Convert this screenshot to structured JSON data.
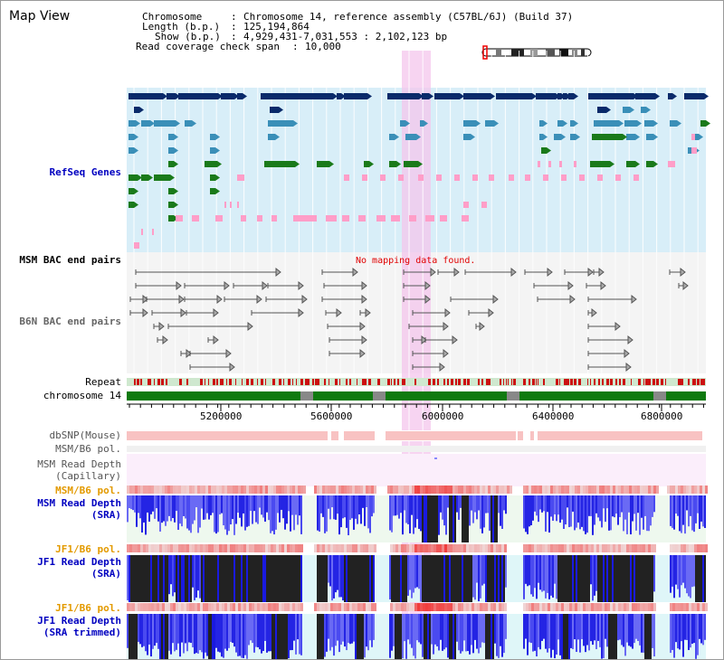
{
  "app_title": "Map View",
  "header": {
    "chromosome_key": "Chromosome",
    "chromosome_val": "Chromosome 14, reference assembly (C57BL/6J) (Build 37)",
    "length_key": "Length (b.p.)",
    "length_val": "125,194,864",
    "show_key": "Show (b.p.)",
    "show_val": "4,929,431-7,031,553 : 2,102,123 bp",
    "span_key": "Read coverage check span",
    "span_val": "10,000"
  },
  "tracks": {
    "refseq": "RefSeq Genes",
    "msm_bac": "MSM BAC end pairs",
    "b6n_bac": "B6N BAC end pairs",
    "no_mapping": "No mapping data found.",
    "repeat": "Repeat",
    "chrom": "chromosome 14",
    "dbsnp": "dbSNP(Mouse)",
    "msm_b6_pol_1": "MSM/B6 pol.",
    "msm_depth_cap_1": "MSM Read Depth",
    "msm_depth_cap_2": "(Capillary)",
    "msm_b6_pol_2": "MSM/B6 pol.",
    "msm_depth_sra_1": "MSM Read Depth",
    "msm_depth_sra_2": "(SRA)",
    "jf1_b6_pol_1": "JF1/B6 pol.",
    "jf1_depth_sra_1": "JF1 Read Depth",
    "jf1_depth_sra_2": "(SRA)",
    "jf1_b6_pol_2": "JF1/B6 pol.",
    "jf1_depth_trim_1": "JF1 Read Depth",
    "jf1_depth_trim_2": "(SRA trimmed)"
  },
  "axis_ticks": [
    "5200000",
    "5600000",
    "6000000",
    "6400000",
    "6800000"
  ],
  "colors": {
    "gene_navy": "#0a2a6a",
    "gene_steel": "#3a8fb8",
    "gene_green": "#1a7a1a",
    "gene_pink": "#ff9ec8",
    "refseq_bg": "#d8eef8",
    "highlight": "#f4c6ec",
    "chrom_green": "#0f7a0f",
    "repeat_red": "#cc1111",
    "depth_blue": "#1a1ae0",
    "label_blue": "#0000c0",
    "label_orange": "#e39a00"
  }
}
